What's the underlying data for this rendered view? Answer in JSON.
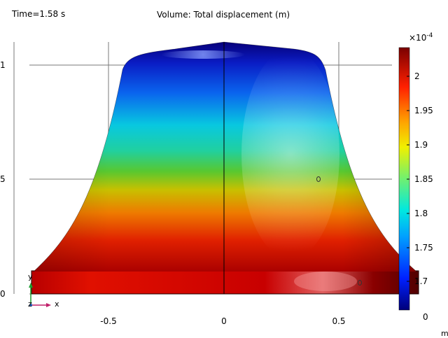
{
  "header": {
    "time_text": "Time=1.58 s",
    "title": "Volume: Total displacement (m)"
  },
  "axes": {
    "x_ticks": [
      "-0.5",
      "0",
      "0.5"
    ],
    "y_ticks": [
      "1",
      "5",
      "0"
    ],
    "unit_text": "m",
    "triad": {
      "y": "y",
      "z": "z",
      "x": "x"
    }
  },
  "colorbar": {
    "exponent_base": "×10",
    "exponent_power": "-4",
    "labels": [
      "2",
      "1.95",
      "1.9",
      "1.85",
      "1.8",
      "1.75",
      "1.7"
    ],
    "bottom_label": "0"
  },
  "colors": {
    "triad_y": "#1e9e30",
    "triad_x": "#c0206a",
    "triad_z": "#2060c0"
  }
}
